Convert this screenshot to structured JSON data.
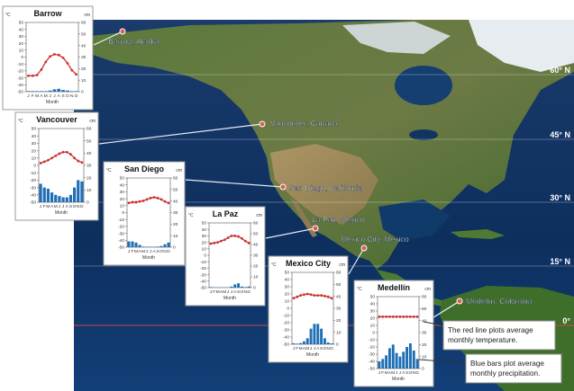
{
  "map": {
    "latitude_lines": [
      {
        "label": "60° N",
        "lat": 60
      },
      {
        "label": "45° N",
        "lat": 45
      },
      {
        "label": "30° N",
        "lat": 30
      },
      {
        "label": "15° N",
        "lat": 15
      },
      {
        "label": "0°",
        "lat": 0
      }
    ],
    "cities": [
      {
        "id": "barrow",
        "label": "Barrow, Alaska"
      },
      {
        "id": "vancouver",
        "label": "Vancouver, Canada"
      },
      {
        "id": "san-diego",
        "label": "San Diego, California"
      },
      {
        "id": "la-paz",
        "label": "La Paz, Mexico"
      },
      {
        "id": "mexico-city",
        "label": "Mexico City, Mexico"
      },
      {
        "id": "medellin",
        "label": "Medellín, Colombia"
      }
    ],
    "colors": {
      "ocean": "#0d2f5e",
      "land_green": "#4f6f33",
      "land_tan": "#a58b5e",
      "ice": "#e6ecf0",
      "temperature_line": "#cc3333",
      "precip_bar": "#1f6fb5",
      "city_marker": "#e05a5a"
    }
  },
  "callouts": {
    "red_line": "The red line plots average monthly temperature.",
    "blue_bars": "Blue bars plot average monthly precipitation."
  },
  "chart_data": [
    {
      "type": "line+bar",
      "title": "Barrow",
      "months": [
        "J",
        "F",
        "M",
        "A",
        "M",
        "J",
        "J",
        "A",
        "S",
        "O",
        "N",
        "D"
      ],
      "xlabel": "Month",
      "left_axis_label": "°C",
      "right_axis_label": "cm",
      "left_ticks": [
        50,
        40,
        30,
        20,
        10,
        0,
        -10,
        -20,
        -30,
        -40,
        -50
      ],
      "right_ticks": [
        60,
        50,
        40,
        30,
        20,
        10,
        0
      ],
      "temp_c": [
        -27,
        -27,
        -26,
        -18,
        -7,
        1,
        4,
        3,
        -1,
        -9,
        -19,
        -25
      ],
      "precip_cm": [
        0.5,
        0.5,
        0.5,
        0.5,
        0.5,
        1,
        2,
        2.5,
        1.5,
        1,
        0.5,
        0.5
      ]
    },
    {
      "type": "line+bar",
      "title": "Vancouver",
      "months": [
        "J",
        "F",
        "M",
        "A",
        "M",
        "J",
        "J",
        "A",
        "S",
        "O",
        "N",
        "D"
      ],
      "xlabel": "Month",
      "left_axis_label": "°C",
      "right_axis_label": "cm",
      "left_ticks": [
        50,
        40,
        30,
        20,
        10,
        0,
        -10,
        -20,
        -30,
        -40,
        -50
      ],
      "right_ticks": [
        60,
        50,
        40,
        30,
        20,
        10,
        0
      ],
      "temp_c": [
        3,
        5,
        7,
        10,
        13,
        16,
        18,
        18,
        15,
        10,
        6,
        4
      ],
      "precip_cm": [
        15,
        12,
        11,
        8,
        6,
        5,
        4,
        4,
        6,
        12,
        18,
        17
      ]
    },
    {
      "type": "line+bar",
      "title": "San Diego",
      "months": [
        "J",
        "F",
        "M",
        "A",
        "M",
        "J",
        "J",
        "A",
        "S",
        "O",
        "N",
        "D"
      ],
      "xlabel": "Month",
      "left_axis_label": "°C",
      "right_axis_label": "cm",
      "left_ticks": [
        50,
        40,
        30,
        20,
        10,
        0,
        -10,
        -20,
        -30,
        -40,
        -50
      ],
      "right_ticks": [
        60,
        50,
        40,
        30,
        20,
        10,
        0
      ],
      "temp_c": [
        14,
        15,
        15,
        16,
        17,
        19,
        21,
        22,
        21,
        19,
        16,
        14
      ],
      "precip_cm": [
        5,
        5,
        4,
        2,
        0.5,
        0.3,
        0.3,
        0.3,
        0.5,
        1,
        2.5,
        4
      ]
    },
    {
      "type": "line+bar",
      "title": "La Paz",
      "months": [
        "J",
        "F",
        "M",
        "A",
        "M",
        "J",
        "J",
        "A",
        "S",
        "O",
        "N",
        "D"
      ],
      "xlabel": "Month",
      "left_axis_label": "°C",
      "right_axis_label": "cm",
      "left_ticks": [
        50,
        40,
        30,
        20,
        10,
        0,
        -10,
        -20,
        -30,
        -40,
        -50
      ],
      "right_ticks": [
        60,
        50,
        40,
        30,
        20,
        10,
        0
      ],
      "temp_c": [
        18,
        19,
        20,
        22,
        24,
        27,
        30,
        30,
        29,
        26,
        22,
        19
      ],
      "precip_cm": [
        0.5,
        0.3,
        0.2,
        0.2,
        0.2,
        0.3,
        1,
        3,
        4,
        1,
        0.5,
        1
      ]
    },
    {
      "type": "line+bar",
      "title": "Mexico City",
      "months": [
        "J",
        "F",
        "M",
        "A",
        "M",
        "J",
        "J",
        "A",
        "S",
        "O",
        "N",
        "D"
      ],
      "xlabel": "Month",
      "left_axis_label": "°C",
      "right_axis_label": "cm",
      "left_ticks": [
        50,
        40,
        30,
        20,
        10,
        0,
        -10,
        -20,
        -30,
        -40,
        -50
      ],
      "right_ticks": [
        60,
        50,
        40,
        30,
        20,
        10,
        0
      ],
      "temp_c": [
        14,
        16,
        18,
        19,
        20,
        19,
        18,
        18,
        18,
        17,
        16,
        14
      ],
      "precip_cm": [
        0.8,
        0.5,
        1,
        2.5,
        5,
        13,
        17,
        17,
        13,
        5,
        1.5,
        0.7
      ]
    },
    {
      "type": "line+bar",
      "title": "Medellín",
      "months": [
        "J",
        "F",
        "M",
        "A",
        "M",
        "J",
        "J",
        "A",
        "S",
        "O",
        "N",
        "D"
      ],
      "xlabel": "Month",
      "left_axis_label": "°C",
      "right_axis_label": "cm",
      "left_ticks": [
        50,
        40,
        30,
        20,
        10,
        0,
        -10,
        -20,
        -30,
        -40,
        -50
      ],
      "right_ticks": [
        60,
        50,
        40,
        30,
        20,
        10,
        0
      ],
      "temp_c": [
        22,
        22,
        22,
        22,
        22,
        22,
        22,
        22,
        22,
        22,
        22,
        22
      ],
      "precip_cm": [
        6,
        8,
        11,
        17,
        20,
        13,
        10,
        14,
        18,
        21,
        15,
        8
      ]
    }
  ]
}
